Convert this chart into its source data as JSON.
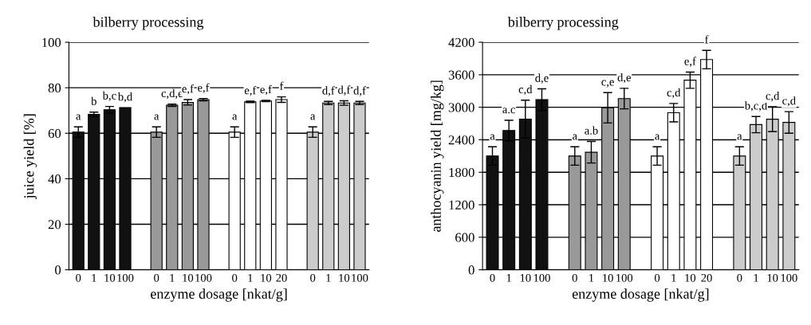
{
  "chart_data": [
    {
      "type": "bar",
      "title": "bilberry processing",
      "xlabel": "enzyme dosage [nkat/g]",
      "ylabel": "juice yield [%]",
      "categories": [
        "0",
        "1",
        "10",
        "100",
        null,
        "0",
        "1",
        "10",
        "100",
        null,
        "0",
        "1",
        "10",
        "20",
        null,
        "0",
        "1",
        "10",
        "100"
      ],
      "series": [
        {
          "color": "#111111",
          "values": [
            60.5,
            68.3,
            70.3,
            71.3,
            null,
            null,
            null,
            null,
            null,
            null,
            null,
            null,
            null,
            null,
            null,
            null,
            null,
            null,
            null
          ],
          "errors": [
            2.3,
            1,
            1.5,
            null,
            null,
            null,
            null,
            null,
            null,
            null,
            null,
            null,
            null,
            null,
            null,
            null,
            null,
            null,
            null
          ],
          "value_labels": [
            "a",
            "b",
            "b,c",
            "b,d",
            null,
            null,
            null,
            null,
            null,
            null,
            null,
            null,
            null,
            null,
            null,
            null,
            null,
            null,
            null
          ]
        },
        {
          "color": "#999999",
          "values": [
            null,
            null,
            null,
            null,
            null,
            60.5,
            72.3,
            73.6,
            74.8,
            null,
            null,
            null,
            null,
            null,
            null,
            null,
            null,
            null,
            null
          ],
          "errors": [
            null,
            null,
            null,
            null,
            null,
            2.3,
            0.5,
            1.2,
            0.5,
            null,
            null,
            null,
            null,
            null,
            null,
            null,
            null,
            null,
            null
          ],
          "value_labels": [
            null,
            null,
            null,
            null,
            null,
            "a",
            "c,d,e",
            "e,f",
            "e,f",
            null,
            null,
            null,
            null,
            null,
            null,
            null,
            null,
            null,
            null
          ]
        },
        {
          "color": "#ffffff",
          "values": [
            null,
            null,
            null,
            null,
            null,
            null,
            null,
            null,
            null,
            null,
            60.5,
            73.8,
            74.2,
            74.8,
            null,
            null,
            null,
            null,
            null
          ],
          "errors": [
            null,
            null,
            null,
            null,
            null,
            null,
            null,
            null,
            null,
            null,
            2.3,
            0.3,
            0.3,
            1.2,
            null,
            null,
            null,
            null,
            null
          ],
          "value_labels": [
            null,
            null,
            null,
            null,
            null,
            null,
            null,
            null,
            null,
            null,
            "a",
            "e,f",
            "e,f",
            "f",
            null,
            null,
            null,
            null,
            null
          ]
        },
        {
          "color": "#cccccc",
          "values": [
            null,
            null,
            null,
            null,
            null,
            null,
            null,
            null,
            null,
            null,
            null,
            null,
            null,
            null,
            null,
            60.5,
            73.3,
            73.3,
            73.3
          ],
          "errors": [
            null,
            null,
            null,
            null,
            null,
            null,
            null,
            null,
            null,
            null,
            null,
            null,
            null,
            null,
            null,
            2.3,
            0.7,
            1,
            0.7
          ],
          "value_labels": [
            null,
            null,
            null,
            null,
            null,
            null,
            null,
            null,
            null,
            null,
            null,
            null,
            null,
            null,
            null,
            "a",
            "d,f",
            "d,f",
            "d,f"
          ]
        }
      ],
      "ylim": [
        0,
        100
      ],
      "yticks": [
        0,
        20,
        40,
        60,
        80,
        100
      ],
      "grid": "y"
    },
    {
      "type": "bar",
      "title": "bilberry processing",
      "xlabel": "enzyme dosage [nkat/g]",
      "ylabel": "anthocyanin yield [mg/kg]",
      "categories": [
        "0",
        "1",
        "10",
        "100",
        null,
        "0",
        "1",
        "10",
        "100",
        null,
        "0",
        "1",
        "10",
        "20",
        null,
        "0",
        "1",
        "10",
        "100"
      ],
      "series": [
        {
          "color": "#111111",
          "values": [
            2100,
            2570,
            2780,
            3140,
            null,
            null,
            null,
            null,
            null,
            null,
            null,
            null,
            null,
            null,
            null,
            null,
            null,
            null,
            null
          ],
          "errors": [
            170,
            190,
            350,
            200,
            null,
            null,
            null,
            null,
            null,
            null,
            null,
            null,
            null,
            null,
            null,
            null,
            null,
            null,
            null
          ],
          "value_labels": [
            "a",
            "a.c",
            "c,d",
            "d,e",
            null,
            null,
            null,
            null,
            null,
            null,
            null,
            null,
            null,
            null,
            null,
            null,
            null,
            null,
            null
          ]
        },
        {
          "color": "#999999",
          "values": [
            null,
            null,
            null,
            null,
            null,
            2100,
            2170,
            2990,
            3160,
            null,
            null,
            null,
            null,
            null,
            null,
            null,
            null,
            null,
            null
          ],
          "errors": [
            null,
            null,
            null,
            null,
            null,
            170,
            200,
            280,
            190,
            null,
            null,
            null,
            null,
            null,
            null,
            null,
            null,
            null,
            null
          ],
          "value_labels": [
            null,
            null,
            null,
            null,
            null,
            "a",
            "a.b",
            "c,e",
            "d,e",
            null,
            null,
            null,
            null,
            null,
            null,
            null,
            null,
            null,
            null
          ]
        },
        {
          "color": "#ffffff",
          "values": [
            null,
            null,
            null,
            null,
            null,
            null,
            null,
            null,
            null,
            null,
            2100,
            2900,
            3500,
            3880,
            null,
            null,
            null,
            null,
            null
          ],
          "errors": [
            null,
            null,
            null,
            null,
            null,
            null,
            null,
            null,
            null,
            null,
            170,
            170,
            150,
            170,
            null,
            null,
            null,
            null,
            null
          ],
          "value_labels": [
            null,
            null,
            null,
            null,
            null,
            null,
            null,
            null,
            null,
            null,
            "a",
            "c,d",
            "e,f",
            "f",
            null,
            null,
            null,
            null,
            null
          ]
        },
        {
          "color": "#cccccc",
          "values": [
            null,
            null,
            null,
            null,
            null,
            null,
            null,
            null,
            null,
            null,
            null,
            null,
            null,
            null,
            null,
            2100,
            2680,
            2780,
            2720
          ],
          "errors": [
            null,
            null,
            null,
            null,
            null,
            null,
            null,
            null,
            null,
            null,
            null,
            null,
            null,
            null,
            null,
            170,
            150,
            230,
            200
          ],
          "value_labels": [
            null,
            null,
            null,
            null,
            null,
            null,
            null,
            null,
            null,
            null,
            null,
            null,
            null,
            null,
            null,
            "a",
            "b,c,d",
            "c,d",
            "c,d"
          ]
        }
      ],
      "ylim": [
        0,
        4200
      ],
      "yticks": [
        0,
        600,
        1200,
        1800,
        2400,
        3000,
        3600,
        4200
      ],
      "grid": "y"
    }
  ]
}
